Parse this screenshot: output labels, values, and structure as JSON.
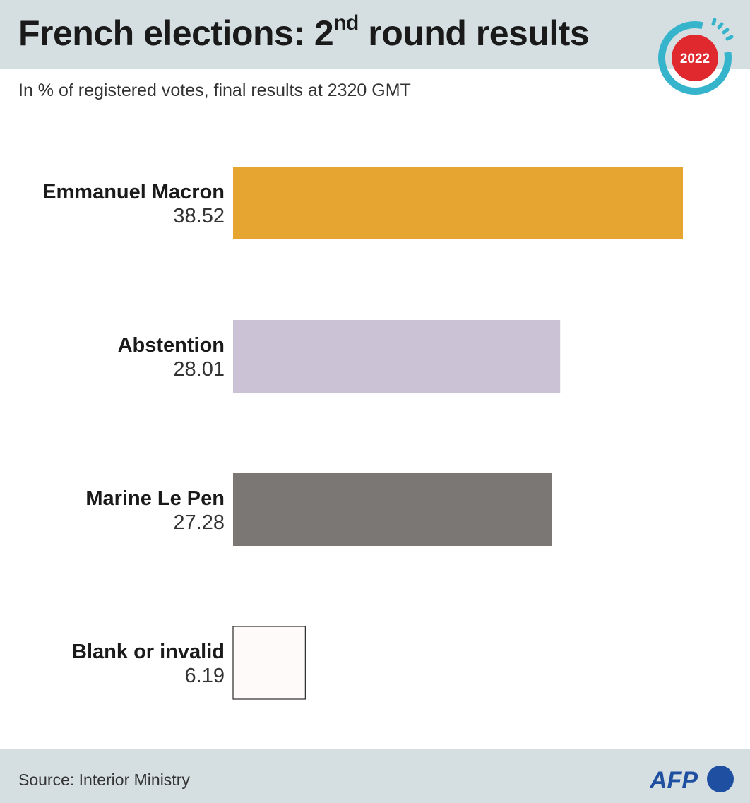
{
  "header": {
    "title_main": "French elections: 2",
    "title_sup": "nd",
    "title_end": " round results",
    "subtitle": "In % of registered votes, final results at 2320 GMT",
    "badge_year": "2022"
  },
  "footer": {
    "source": "Source: Interior Ministry",
    "logo_text": "AFP"
  },
  "colors": {
    "macron": "#e6a430",
    "abstention": "#cbc3d5",
    "lepen": "#7a7775",
    "blank": "#fffafa",
    "badge_red": "#e0292f",
    "badge_ring": "#36b4cc",
    "afp_blue": "#1f4fa1"
  },
  "chart_data": {
    "type": "bar",
    "orientation": "horizontal",
    "categories": [
      "Emmanuel Macron",
      "Abstention",
      "Marine Le Pen",
      "Blank or invalid"
    ],
    "values": [
      38.52,
      28.01,
      27.28,
      6.19
    ],
    "value_labels": [
      "38.52",
      "28.01",
      "27.28",
      "6.19"
    ],
    "bar_colors": [
      "#e6a430",
      "#cbc3d5",
      "#7a7775",
      "#fffafa"
    ],
    "xlim": [
      0,
      38.52
    ],
    "grid": false,
    "legend": "none"
  }
}
